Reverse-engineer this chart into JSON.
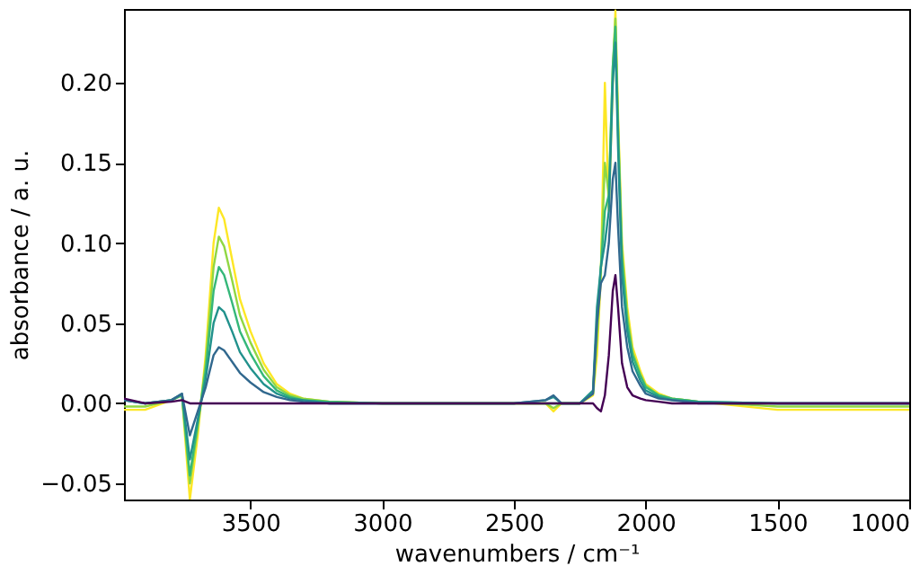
{
  "chart_data": {
    "type": "line",
    "xlabel": "wavenumbers / cm⁻¹",
    "ylabel": "absorbance / a. u.",
    "x": [
      3980,
      3900,
      3800,
      3760,
      3730,
      3700,
      3670,
      3640,
      3620,
      3600,
      3570,
      3540,
      3500,
      3450,
      3400,
      3350,
      3300,
      3200,
      3000,
      2500,
      2380,
      2350,
      2320,
      2250,
      2200,
      2185,
      2170,
      2155,
      2140,
      2125,
      2115,
      2105,
      2090,
      2070,
      2050,
      2020,
      2000,
      1950,
      1900,
      1800,
      1500,
      1000
    ],
    "series": [
      {
        "color": "#fde725",
        "values": [
          -0.004,
          -0.004,
          0.002,
          0.005,
          -0.06,
          -0.02,
          0.03,
          0.1,
          0.122,
          0.115,
          0.09,
          0.065,
          0.045,
          0.025,
          0.012,
          0.006,
          0.003,
          0.001,
          0,
          0,
          0,
          -0.005,
          0,
          0,
          0.005,
          0.03,
          0.08,
          0.2,
          0.12,
          0.2,
          0.245,
          0.18,
          0.1,
          0.06,
          0.035,
          0.02,
          0.012,
          0.006,
          0.003,
          0.001,
          -0.004,
          -0.004
        ]
      },
      {
        "color": "#90d743",
        "values": [
          -0.002,
          -0.002,
          0.002,
          0.005,
          -0.05,
          -0.015,
          0.025,
          0.085,
          0.104,
          0.098,
          0.077,
          0.055,
          0.038,
          0.021,
          0.01,
          0.005,
          0.003,
          0.001,
          0,
          0,
          0,
          -0.003,
          0,
          0,
          0.006,
          0.04,
          0.085,
          0.15,
          0.13,
          0.21,
          0.24,
          0.175,
          0.095,
          0.055,
          0.032,
          0.018,
          0.011,
          0.005,
          0.003,
          0.001,
          -0.002,
          -0.002
        ]
      },
      {
        "color": "#35b779",
        "values": [
          0.002,
          0,
          0.002,
          0.005,
          -0.045,
          -0.012,
          0.02,
          0.07,
          0.085,
          0.08,
          0.063,
          0.045,
          0.031,
          0.017,
          0.008,
          0.004,
          0.002,
          0.001,
          0,
          0,
          0,
          0,
          0,
          0,
          0.007,
          0.05,
          0.085,
          0.12,
          0.13,
          0.21,
          0.235,
          0.17,
          0.09,
          0.05,
          0.03,
          0.017,
          0.01,
          0.005,
          0.003,
          0.001,
          0,
          0
        ]
      },
      {
        "color": "#21918c",
        "values": [
          0.002,
          0,
          0.002,
          0.006,
          -0.035,
          -0.01,
          0.015,
          0.05,
          0.06,
          0.057,
          0.045,
          0.032,
          0.022,
          0.012,
          0.006,
          0.003,
          0.002,
          0,
          0,
          0,
          0.002,
          0.004,
          0,
          0,
          0.008,
          0.06,
          0.085,
          0.1,
          0.12,
          0.2,
          0.225,
          0.16,
          0.08,
          0.045,
          0.026,
          0.014,
          0.008,
          0.004,
          0.002,
          0.001,
          0,
          0
        ]
      },
      {
        "color": "#31688e",
        "values": [
          0.002,
          0,
          0.002,
          0.006,
          -0.02,
          -0.005,
          0.01,
          0.03,
          0.035,
          0.033,
          0.026,
          0.019,
          0.013,
          0.007,
          0.004,
          0.002,
          0.001,
          0,
          0,
          0,
          0.002,
          0.005,
          0,
          0,
          0.006,
          0.05,
          0.075,
          0.08,
          0.1,
          0.14,
          0.15,
          0.11,
          0.06,
          0.035,
          0.02,
          0.011,
          0.006,
          0.003,
          0.002,
          0,
          0,
          0
        ]
      },
      {
        "color": "#440154",
        "values": [
          0.003,
          0,
          0.001,
          0.002,
          0,
          0,
          0,
          0,
          0,
          0,
          0,
          0,
          0,
          0,
          0,
          0,
          0,
          0,
          0,
          0,
          0,
          0,
          0,
          0,
          0,
          -0.003,
          -0.005,
          0.005,
          0.03,
          0.07,
          0.08,
          0.06,
          0.025,
          0.01,
          0.005,
          0.003,
          0.002,
          0.001,
          0,
          0,
          0,
          0
        ]
      }
    ],
    "xlim": [
      3980,
      1000
    ],
    "xticks": [
      {
        "value": 3500,
        "label": "3500"
      },
      {
        "value": 3000,
        "label": "3000"
      },
      {
        "value": 2500,
        "label": "2500"
      },
      {
        "value": 2000,
        "label": "2000"
      },
      {
        "value": 1500,
        "label": "1500"
      },
      {
        "value": 1000,
        "label": "1000"
      }
    ],
    "ylim": [
      -0.06,
      0.246
    ],
    "yticks": [
      {
        "value": -0.05,
        "label": "−0.05"
      },
      {
        "value": 0,
        "label": "0.00"
      },
      {
        "value": 0.05,
        "label": "0.05"
      },
      {
        "value": 0.1,
        "label": "0.10"
      },
      {
        "value": 0.15,
        "label": "0.15"
      },
      {
        "value": 0.2,
        "label": "0.20"
      }
    ],
    "grid": false,
    "legend": false
  }
}
